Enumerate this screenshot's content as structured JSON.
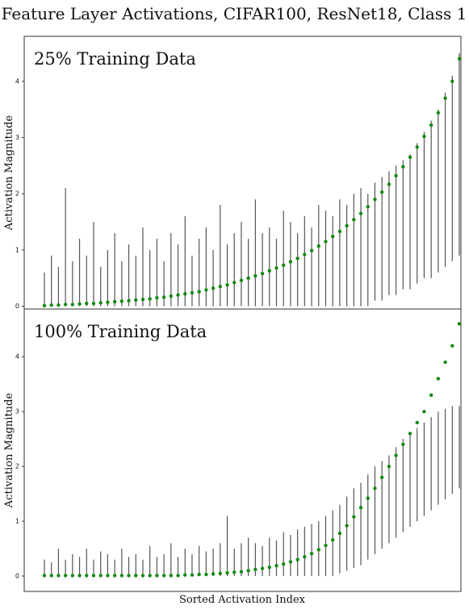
{
  "title": "Feature Layer Activations, CIFAR100, ResNet18, Class 1",
  "x_label": "Sorted Activation Index",
  "chart_data": [
    {
      "type": "errorbar",
      "panel_label": "25% Training Data",
      "y_label": "Activation Magnitude",
      "ylim": [
        -0.05,
        4.8
      ],
      "yticks": [
        0,
        1,
        2,
        3,
        4
      ],
      "dot_color": "#138a13",
      "bar_color": "#555555",
      "values": [
        0.01,
        0.02,
        0.02,
        0.03,
        0.03,
        0.04,
        0.05,
        0.05,
        0.06,
        0.07,
        0.08,
        0.09,
        0.1,
        0.11,
        0.12,
        0.13,
        0.15,
        0.16,
        0.18,
        0.2,
        0.22,
        0.24,
        0.26,
        0.29,
        0.32,
        0.35,
        0.38,
        0.42,
        0.46,
        0.5,
        0.54,
        0.58,
        0.63,
        0.68,
        0.73,
        0.79,
        0.85,
        0.92,
        0.99,
        1.07,
        1.15,
        1.24,
        1.33,
        1.43,
        1.54,
        1.65,
        1.77,
        1.9,
        2.03,
        2.17,
        2.32,
        2.48,
        2.65,
        2.83,
        3.02,
        3.22,
        3.44,
        3.7,
        4.0,
        4.4
      ],
      "low": [
        0,
        0,
        0,
        0,
        0,
        0,
        0,
        0,
        0,
        0,
        0,
        0,
        0,
        0,
        0,
        0,
        0,
        0,
        0,
        0,
        0,
        0,
        0,
        0,
        0,
        0,
        0,
        0,
        0,
        0,
        0,
        0,
        0,
        0,
        0,
        0,
        0,
        0,
        0,
        0,
        0,
        0,
        0,
        0,
        0,
        0,
        0,
        0.1,
        0.1,
        0.2,
        0.2,
        0.3,
        0.3,
        0.4,
        0.5,
        0.5,
        0.6,
        0.7,
        0.8,
        0.9
      ],
      "high": [
        0.6,
        0.9,
        0.7,
        2.1,
        0.8,
        1.2,
        0.9,
        1.5,
        0.7,
        1.0,
        1.3,
        0.8,
        1.1,
        0.9,
        1.4,
        1.0,
        1.2,
        0.8,
        1.3,
        1.1,
        1.6,
        0.9,
        1.2,
        1.4,
        1.0,
        1.8,
        1.1,
        1.3,
        1.5,
        1.2,
        1.9,
        1.3,
        1.4,
        1.2,
        1.7,
        1.5,
        1.3,
        1.6,
        1.4,
        1.8,
        1.7,
        1.6,
        1.9,
        1.8,
        2.0,
        2.1,
        2.0,
        2.2,
        2.3,
        2.4,
        2.5,
        2.6,
        2.7,
        2.9,
        3.1,
        3.3,
        3.5,
        3.8,
        4.1,
        4.5
      ]
    },
    {
      "type": "errorbar",
      "panel_label": "100% Training Data",
      "y_label": "Activation Magnitude",
      "ylim": [
        -0.28,
        4.87
      ],
      "yticks": [
        0,
        1,
        2,
        3,
        4
      ],
      "dot_color": "#138a13",
      "bar_color": "#555555",
      "values": [
        0.01,
        0.01,
        0.01,
        0.01,
        0.01,
        0.01,
        0.01,
        0.01,
        0.01,
        0.01,
        0.01,
        0.01,
        0.01,
        0.01,
        0.01,
        0.01,
        0.01,
        0.01,
        0.01,
        0.01,
        0.02,
        0.02,
        0.03,
        0.03,
        0.04,
        0.05,
        0.06,
        0.07,
        0.08,
        0.1,
        0.12,
        0.14,
        0.16,
        0.19,
        0.22,
        0.26,
        0.3,
        0.35,
        0.41,
        0.48,
        0.56,
        0.66,
        0.78,
        0.92,
        1.08,
        1.25,
        1.42,
        1.6,
        1.8,
        2.0,
        2.2,
        2.4,
        2.6,
        2.8,
        3.0,
        3.3,
        3.6,
        3.9,
        4.2,
        4.6
      ],
      "low": [
        0,
        0,
        0,
        0,
        0,
        0,
        0,
        0,
        0,
        0,
        0,
        0,
        0,
        0,
        0,
        0,
        0,
        0,
        0,
        0,
        0,
        0,
        0,
        0,
        0,
        0,
        0,
        0,
        0,
        0,
        0,
        0,
        0,
        0,
        0,
        0,
        0,
        0,
        0,
        0,
        0,
        0,
        0.05,
        0.1,
        0.15,
        0.2,
        0.3,
        0.4,
        0.5,
        0.6,
        0.7,
        0.8,
        0.9,
        1.0,
        1.1,
        1.2,
        1.3,
        1.4,
        1.5,
        1.6
      ],
      "high": [
        0.3,
        0.25,
        0.5,
        0.3,
        0.4,
        0.35,
        0.5,
        0.3,
        0.45,
        0.4,
        0.3,
        0.5,
        0.35,
        0.4,
        0.3,
        0.55,
        0.35,
        0.4,
        0.6,
        0.35,
        0.5,
        0.4,
        0.55,
        0.45,
        0.5,
        0.6,
        1.1,
        0.5,
        0.6,
        0.7,
        0.6,
        0.55,
        0.7,
        0.65,
        0.8,
        0.75,
        0.85,
        0.9,
        0.95,
        1.0,
        1.1,
        1.2,
        1.3,
        1.45,
        1.6,
        1.7,
        1.85,
        2.0,
        2.1,
        2.2,
        2.35,
        2.5,
        2.6,
        2.7,
        2.8,
        2.9,
        3.0,
        3.05,
        3.1,
        3.1
      ]
    }
  ]
}
